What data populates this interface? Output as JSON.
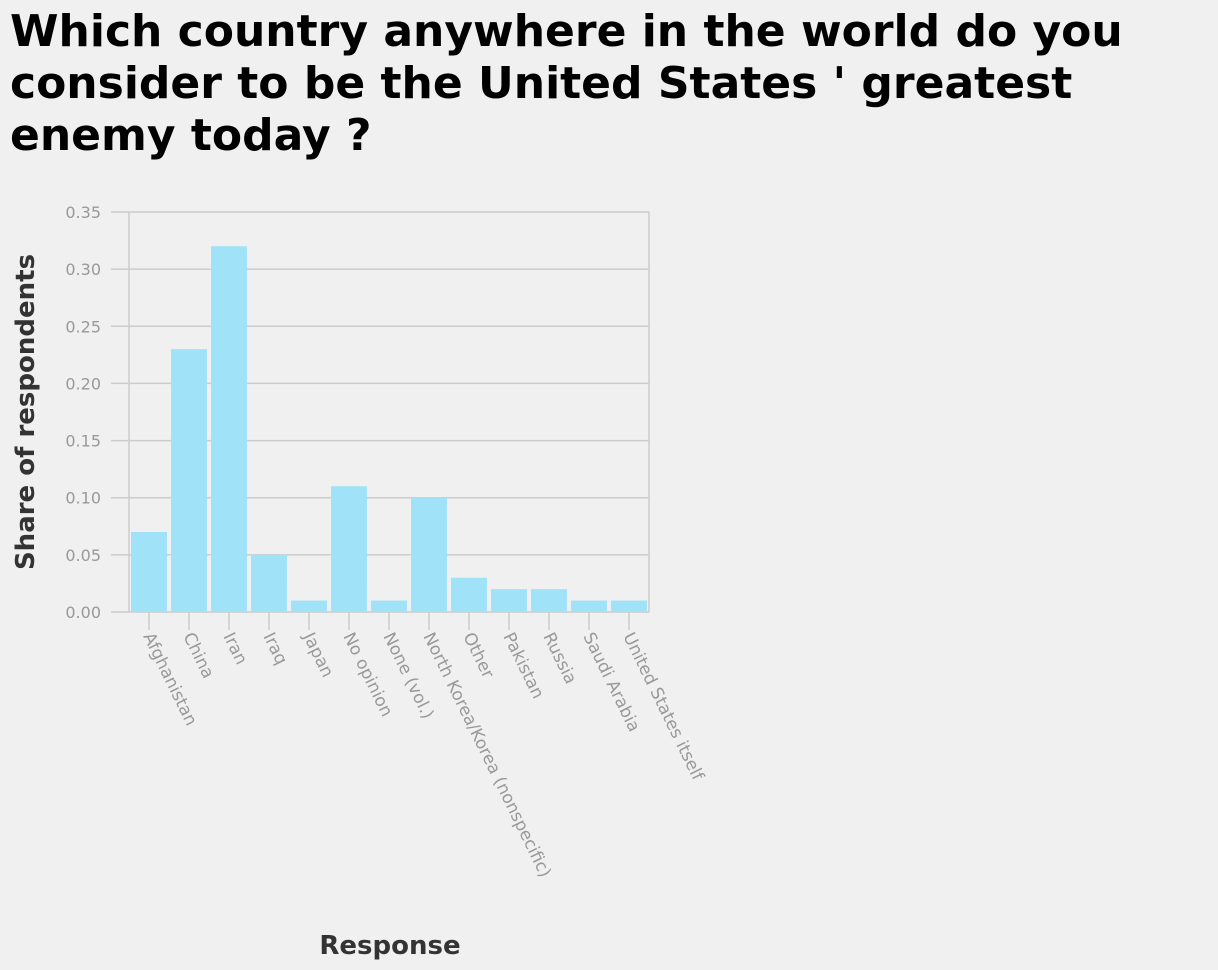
{
  "chart_data": {
    "type": "bar",
    "title": "Which country anywhere in the world do you consider to be the United States ' greatest enemy today ?",
    "xlabel": "Response",
    "ylabel": "Share of respondents",
    "categories": [
      "Afghanistan",
      "China",
      "Iran",
      "Iraq",
      "Japan",
      "No opinion",
      "None (vol.)",
      "North Korea/Korea (nonspecific)",
      "Other",
      "Pakistan",
      "Russia",
      "Saudi Arabia",
      "United States itself"
    ],
    "values": [
      0.07,
      0.23,
      0.32,
      0.05,
      0.01,
      0.11,
      0.01,
      0.1,
      0.03,
      0.02,
      0.02,
      0.01,
      0.01
    ],
    "ylim": [
      0,
      0.35
    ],
    "yticks": [
      "0.00",
      "0.05",
      "0.10",
      "0.15",
      "0.20",
      "0.25",
      "0.30",
      "0.35"
    ],
    "grid": true,
    "colors": {
      "bar": "#a0e3f8",
      "grid": "#cccccc",
      "tick_label": "#999999",
      "axis_label": "#333333"
    }
  }
}
